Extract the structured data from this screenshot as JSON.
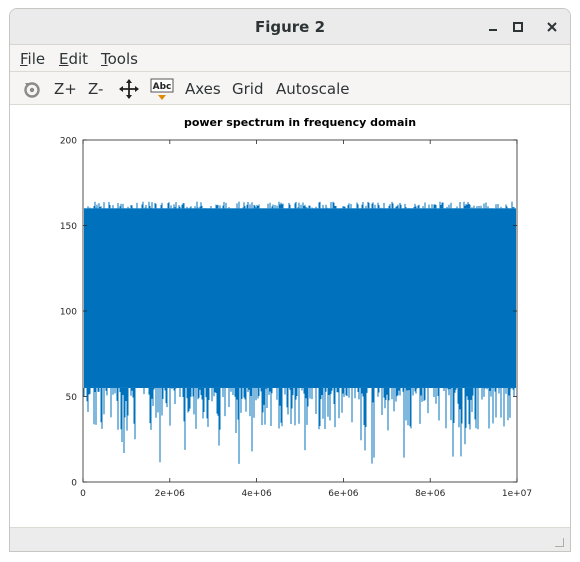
{
  "window": {
    "title": "Figure 2",
    "controls": {
      "minimize": "–",
      "maximize": "□",
      "close": "×"
    }
  },
  "menubar": {
    "items": [
      {
        "key": "F",
        "rest": "ile"
      },
      {
        "key": "E",
        "rest": "dit"
      },
      {
        "key": "T",
        "rest": "ools"
      }
    ]
  },
  "toolbar": {
    "rotate_icon": "rotate-icon",
    "zoom_in": "Z+",
    "zoom_out": "Z-",
    "pan_icon": "pan-arrows-icon",
    "text_icon": "Abc",
    "axes": "Axes",
    "grid": "Grid",
    "autoscale": "Autoscale"
  },
  "chart_data": {
    "type": "line",
    "title": "power spectrum in frequency domain",
    "xlabel": "",
    "ylabel": "",
    "xlim": [
      0,
      10000000
    ],
    "ylim": [
      0,
      200
    ],
    "xticks": [
      "0",
      "2e+06",
      "4e+06",
      "6e+06",
      "8e+06",
      "1e+07"
    ],
    "yticks": [
      "0",
      "50",
      "100",
      "150",
      "200"
    ],
    "color": "#0072bd",
    "grid": false,
    "series": [
      {
        "values_upper_approx": 160,
        "upper_range": [
          156,
          164
        ],
        "values_lower_typical": 55,
        "lower_range": [
          10,
          68
        ]
      }
    ]
  }
}
